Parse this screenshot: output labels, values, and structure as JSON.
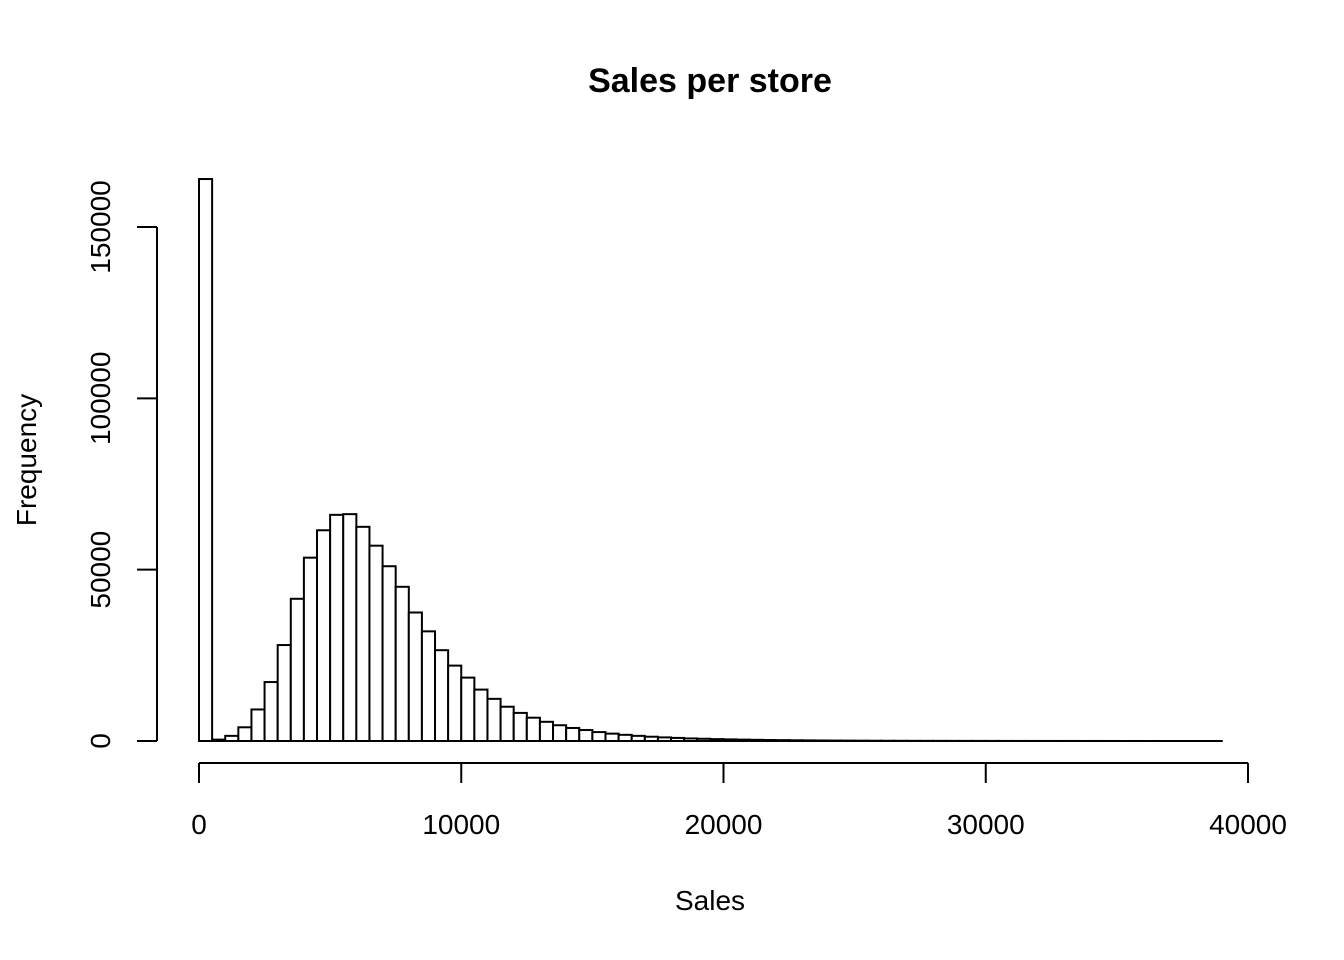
{
  "chart_data": {
    "type": "bar",
    "title": "Sales per store",
    "xlabel": "Sales",
    "ylabel": "Frequency",
    "xlim": [
      0,
      40000
    ],
    "ylim": [
      0,
      165000
    ],
    "xticks": [
      0,
      10000,
      20000,
      30000,
      40000
    ],
    "yticks": [
      0,
      50000,
      100000,
      150000
    ],
    "xtick_labels": [
      "0",
      "10000",
      "20000",
      "30000",
      "40000"
    ],
    "ytick_labels": [
      "0",
      "50000",
      "100000",
      "150000"
    ],
    "bin_width": 500,
    "bin_start": 0,
    "values": [
      164000,
      400,
      1500,
      4000,
      9200,
      17200,
      28000,
      41500,
      53500,
      61500,
      66000,
      66200,
      62500,
      57000,
      51000,
      45000,
      37500,
      32000,
      26500,
      22000,
      18500,
      15000,
      12300,
      10000,
      8200,
      6800,
      5600,
      4600,
      3800,
      3200,
      2600,
      2150,
      1800,
      1500,
      1250,
      1050,
      900,
      750,
      650,
      550,
      470,
      400,
      340,
      290,
      250,
      210,
      180,
      150,
      130,
      110,
      95,
      80,
      70,
      60,
      50,
      45,
      40,
      35,
      30,
      26,
      23,
      20,
      18,
      16,
      14,
      12,
      11,
      10,
      9,
      8,
      7,
      6,
      5,
      5,
      4,
      4,
      3,
      3
    ]
  }
}
